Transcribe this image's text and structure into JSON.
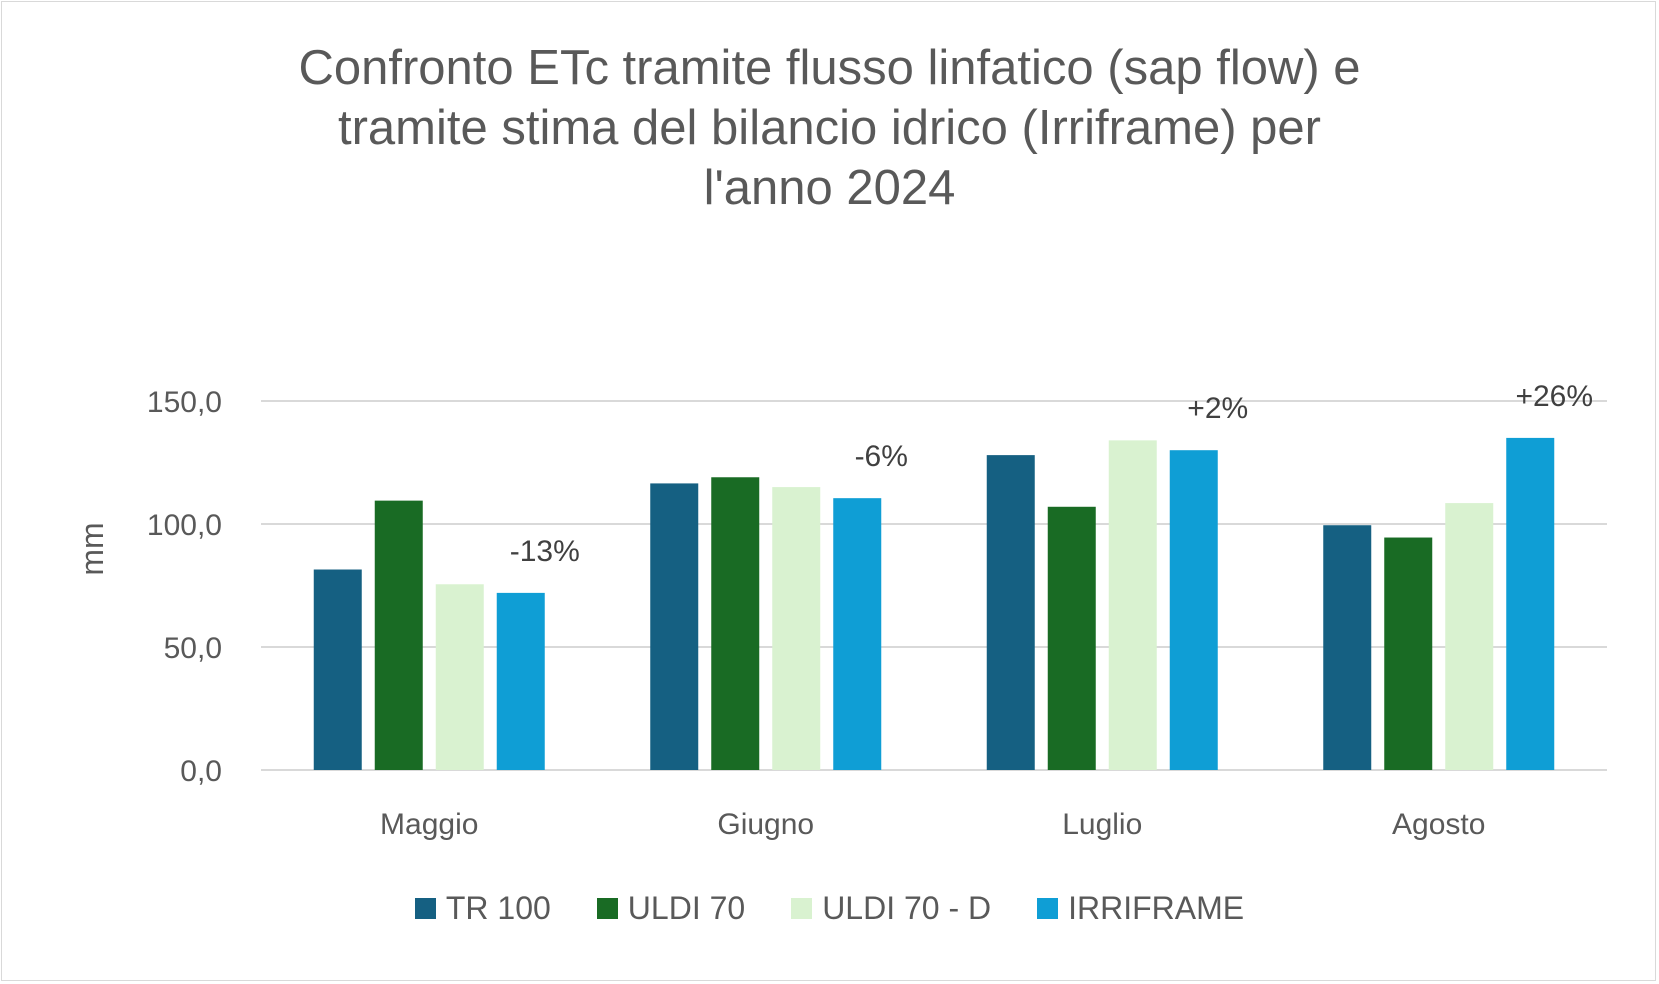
{
  "chart_data": {
    "type": "bar",
    "title_lines": [
      "Confronto ETc tramite flusso linfatico (sap flow) e",
      "tramite stima del bilancio idrico (Irriframe) per",
      "l'anno 2024"
    ],
    "ylabel": "mm",
    "xlabel": "",
    "ylim": [
      0,
      150
    ],
    "yticks": [
      "0,0",
      "50,0",
      "100,0",
      "150,0"
    ],
    "ytick_values": [
      0,
      50,
      100,
      150
    ],
    "grid": true,
    "legend_position": "bottom",
    "categories": [
      "Maggio",
      "Giugno",
      "Luglio",
      "Agosto"
    ],
    "series": [
      {
        "name": "TR 100",
        "color": "#156082",
        "values": [
          81.5,
          116.5,
          128.0,
          99.5
        ]
      },
      {
        "name": "ULDI 70",
        "color": "#196B24",
        "values": [
          109.5,
          119.0,
          107.0,
          94.5
        ]
      },
      {
        "name": "ULDI 70 - D",
        "color": "#D9F2D0",
        "values": [
          75.5,
          115.0,
          134.0,
          108.5
        ]
      },
      {
        "name": "IRRIFRAME",
        "color": "#0F9ED5",
        "values": [
          72.0,
          110.5,
          130.0,
          135.0
        ]
      }
    ],
    "annotations": [
      "-13%",
      "-6%",
      "+2%",
      "+26%"
    ]
  }
}
